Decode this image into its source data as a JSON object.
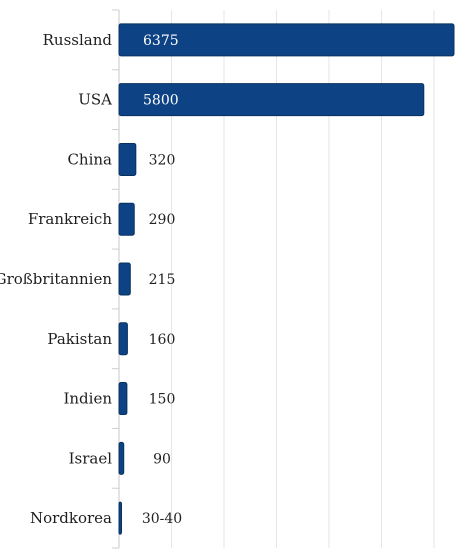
{
  "chart_data": {
    "type": "bar",
    "orientation": "horizontal",
    "categories": [
      "Russland",
      "USA",
      "China",
      "Frankreich",
      "Großbritannien",
      "Pakistan",
      "Indien",
      "Israel",
      "Nordkorea"
    ],
    "values": [
      6375,
      5800,
      320,
      290,
      215,
      160,
      150,
      90,
      35
    ],
    "value_labels": [
      "6375",
      "5800",
      "320",
      "290",
      "215",
      "160",
      "150",
      "90",
      "30-40"
    ],
    "xlim": [
      0,
      6375
    ],
    "grid": true,
    "legend": "none",
    "colors": {
      "bar": "#0d4384",
      "bar_stroke": "#08305e",
      "label_inside": "#ffffff",
      "label_outside": "#222222",
      "category_text": "#1e1e1e",
      "grid": "#e6e6e6"
    }
  }
}
